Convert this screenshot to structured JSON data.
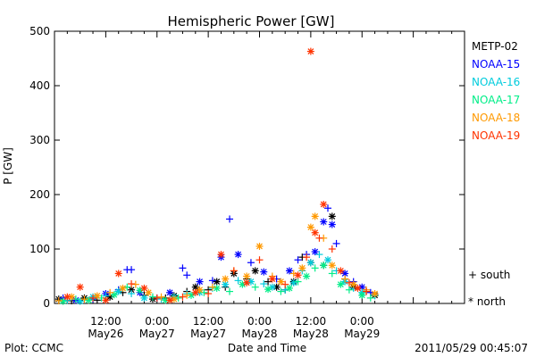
{
  "chart_data": {
    "type": "scatter",
    "title": "Hemispheric Power [GW]",
    "xlabel": "Date and Time",
    "ylabel": "P [GW]",
    "ylim": [
      0,
      500
    ],
    "yticks": [
      0,
      100,
      200,
      300,
      400,
      500
    ],
    "xlim_hours": [
      0,
      96
    ],
    "x_ticks": [
      {
        "hour": 12,
        "label_top": "12:00",
        "label_bottom": "May26"
      },
      {
        "hour": 24,
        "label_top": "0:00",
        "label_bottom": "May27"
      },
      {
        "hour": 36,
        "label_top": "12:00",
        "label_bottom": "May27"
      },
      {
        "hour": 48,
        "label_top": "0:00",
        "label_bottom": "May28"
      },
      {
        "hour": 60,
        "label_top": "12:00",
        "label_bottom": "May28"
      },
      {
        "hour": 72,
        "label_top": "0:00",
        "label_bottom": "May29"
      }
    ],
    "legend_placement": "right",
    "marker_legend": [
      {
        "symbol": "+",
        "label": "south"
      },
      {
        "symbol": "*",
        "label": "north"
      }
    ],
    "series": [
      {
        "name": "METP-02",
        "color": "#000000",
        "points": [
          [
            1,
            8,
            "n"
          ],
          [
            4,
            5,
            "s"
          ],
          [
            7,
            10,
            "n"
          ],
          [
            10,
            6,
            "s"
          ],
          [
            13,
            12,
            "n"
          ],
          [
            16,
            20,
            "s"
          ],
          [
            18,
            25,
            "n"
          ],
          [
            21,
            15,
            "s"
          ],
          [
            23,
            8,
            "n"
          ],
          [
            26,
            10,
            "s"
          ],
          [
            28,
            14,
            "n"
          ],
          [
            31,
            22,
            "s"
          ],
          [
            33,
            30,
            "n"
          ],
          [
            36,
            25,
            "s"
          ],
          [
            38,
            40,
            "n"
          ],
          [
            40,
            30,
            "s"
          ],
          [
            42,
            55,
            "n"
          ],
          [
            45,
            45,
            "s"
          ],
          [
            47,
            60,
            "n"
          ],
          [
            50,
            40,
            "s"
          ],
          [
            52,
            30,
            "n"
          ],
          [
            54,
            25,
            "s"
          ],
          [
            56,
            40,
            "n"
          ],
          [
            58,
            85,
            "s"
          ],
          [
            60,
            75,
            "n"
          ],
          [
            63,
            70,
            "s"
          ],
          [
            65,
            160,
            "n"
          ],
          [
            68,
            45,
            "s"
          ],
          [
            70,
            30,
            "n"
          ],
          [
            73,
            22,
            "s"
          ],
          [
            75,
            15,
            "n"
          ]
        ]
      },
      {
        "name": "NOAA-15",
        "color": "#0000ff",
        "points": [
          [
            2,
            10,
            "s"
          ],
          [
            5,
            6,
            "n"
          ],
          [
            9,
            8,
            "s"
          ],
          [
            12,
            18,
            "n"
          ],
          [
            15,
            25,
            "s"
          ],
          [
            17,
            62,
            "s"
          ],
          [
            18,
            62,
            "s"
          ],
          [
            20,
            20,
            "n"
          ],
          [
            24,
            10,
            "s"
          ],
          [
            27,
            20,
            "n"
          ],
          [
            30,
            65,
            "s"
          ],
          [
            31,
            52,
            "s"
          ],
          [
            34,
            40,
            "n"
          ],
          [
            37,
            42,
            "s"
          ],
          [
            39,
            85,
            "n"
          ],
          [
            41,
            155,
            "s"
          ],
          [
            43,
            90,
            "n"
          ],
          [
            46,
            75,
            "s"
          ],
          [
            49,
            58,
            "n"
          ],
          [
            52,
            45,
            "s"
          ],
          [
            55,
            60,
            "n"
          ],
          [
            57,
            80,
            "s"
          ],
          [
            59,
            90,
            "s"
          ],
          [
            61,
            95,
            "n"
          ],
          [
            63,
            150,
            "n"
          ],
          [
            64,
            175,
            "s"
          ],
          [
            65,
            145,
            "n"
          ],
          [
            66,
            110,
            "s"
          ],
          [
            68,
            55,
            "n"
          ],
          [
            70,
            40,
            "s"
          ],
          [
            72,
            30,
            "n"
          ],
          [
            74,
            20,
            "s"
          ]
        ]
      },
      {
        "name": "NOAA-16",
        "color": "#00ccdd",
        "points": [
          [
            3,
            6,
            "s"
          ],
          [
            6,
            4,
            "n"
          ],
          [
            9,
            12,
            "n"
          ],
          [
            12,
            14,
            "s"
          ],
          [
            15,
            22,
            "n"
          ],
          [
            18,
            18,
            "s"
          ],
          [
            21,
            10,
            "n"
          ],
          [
            25,
            8,
            "s"
          ],
          [
            28,
            12,
            "n"
          ],
          [
            31,
            18,
            "s"
          ],
          [
            34,
            20,
            "n"
          ],
          [
            37,
            28,
            "s"
          ],
          [
            40,
            35,
            "n"
          ],
          [
            43,
            42,
            "s"
          ],
          [
            46,
            40,
            "n"
          ],
          [
            49,
            36,
            "s"
          ],
          [
            51,
            30,
            "n"
          ],
          [
            54,
            25,
            "s"
          ],
          [
            56,
            38,
            "n"
          ],
          [
            58,
            60,
            "s"
          ],
          [
            60,
            75,
            "n"
          ],
          [
            62,
            90,
            "s"
          ],
          [
            64,
            80,
            "n"
          ],
          [
            66,
            60,
            "s"
          ],
          [
            68,
            40,
            "n"
          ],
          [
            70,
            28,
            "s"
          ],
          [
            72,
            20,
            "n"
          ],
          [
            75,
            14,
            "s"
          ]
        ]
      },
      {
        "name": "NOAA-17",
        "color": "#00ee88",
        "points": [
          [
            2,
            4,
            "n"
          ],
          [
            5,
            8,
            "s"
          ],
          [
            8,
            6,
            "n"
          ],
          [
            11,
            10,
            "s"
          ],
          [
            14,
            16,
            "n"
          ],
          [
            17,
            30,
            "s"
          ],
          [
            20,
            24,
            "n"
          ],
          [
            23,
            12,
            "s"
          ],
          [
            26,
            6,
            "n"
          ],
          [
            29,
            10,
            "s"
          ],
          [
            32,
            15,
            "n"
          ],
          [
            35,
            20,
            "s"
          ],
          [
            38,
            28,
            "n"
          ],
          [
            41,
            22,
            "s"
          ],
          [
            44,
            35,
            "n"
          ],
          [
            47,
            30,
            "s"
          ],
          [
            50,
            26,
            "n"
          ],
          [
            53,
            22,
            "s"
          ],
          [
            55,
            28,
            "n"
          ],
          [
            57,
            40,
            "s"
          ],
          [
            59,
            50,
            "n"
          ],
          [
            61,
            65,
            "s"
          ],
          [
            63,
            70,
            "n"
          ],
          [
            65,
            55,
            "s"
          ],
          [
            67,
            35,
            "n"
          ],
          [
            69,
            25,
            "s"
          ],
          [
            72,
            15,
            "n"
          ],
          [
            74,
            10,
            "s"
          ]
        ]
      },
      {
        "name": "NOAA-18",
        "color": "#ff9900",
        "points": [
          [
            1,
            5,
            "s"
          ],
          [
            4,
            12,
            "n"
          ],
          [
            7,
            8,
            "s"
          ],
          [
            10,
            14,
            "n"
          ],
          [
            13,
            20,
            "s"
          ],
          [
            16,
            28,
            "n"
          ],
          [
            19,
            35,
            "s"
          ],
          [
            22,
            20,
            "n"
          ],
          [
            25,
            12,
            "s"
          ],
          [
            28,
            8,
            "n"
          ],
          [
            31,
            15,
            "s"
          ],
          [
            34,
            25,
            "n"
          ],
          [
            37,
            30,
            "s"
          ],
          [
            40,
            45,
            "n"
          ],
          [
            42,
            60,
            "s"
          ],
          [
            45,
            50,
            "n"
          ],
          [
            48,
            105,
            "n"
          ],
          [
            51,
            50,
            "s"
          ],
          [
            53,
            40,
            "n"
          ],
          [
            56,
            55,
            "s"
          ],
          [
            58,
            65,
            "n"
          ],
          [
            60,
            140,
            "n"
          ],
          [
            61,
            160,
            "n"
          ],
          [
            63,
            120,
            "s"
          ],
          [
            65,
            70,
            "n"
          ],
          [
            68,
            45,
            "s"
          ],
          [
            70,
            35,
            "n"
          ],
          [
            73,
            25,
            "s"
          ],
          [
            75,
            18,
            "n"
          ]
        ]
      },
      {
        "name": "NOAA-19",
        "color": "#ff3300",
        "points": [
          [
            3,
            12,
            "n"
          ],
          [
            6,
            30,
            "n"
          ],
          [
            9,
            10,
            "s"
          ],
          [
            12,
            6,
            "n"
          ],
          [
            15,
            55,
            "n"
          ],
          [
            18,
            36,
            "s"
          ],
          [
            21,
            28,
            "n"
          ],
          [
            24,
            10,
            "s"
          ],
          [
            27,
            6,
            "n"
          ],
          [
            30,
            12,
            "s"
          ],
          [
            33,
            20,
            "n"
          ],
          [
            36,
            18,
            "s"
          ],
          [
            39,
            90,
            "n"
          ],
          [
            42,
            60,
            "s"
          ],
          [
            45,
            38,
            "n"
          ],
          [
            48,
            80,
            "s"
          ],
          [
            51,
            45,
            "n"
          ],
          [
            54,
            35,
            "s"
          ],
          [
            57,
            52,
            "n"
          ],
          [
            59,
            85,
            "s"
          ],
          [
            60,
            463,
            "n"
          ],
          [
            61,
            130,
            "n"
          ],
          [
            62,
            120,
            "s"
          ],
          [
            63,
            182,
            "n"
          ],
          [
            65,
            100,
            "s"
          ],
          [
            67,
            60,
            "n"
          ],
          [
            69,
            38,
            "s"
          ],
          [
            71,
            28,
            "n"
          ],
          [
            73,
            22,
            "s"
          ]
        ]
      }
    ]
  },
  "footer": {
    "left": "Plot: CCMC",
    "right": "2011/05/29 00:45:07"
  }
}
